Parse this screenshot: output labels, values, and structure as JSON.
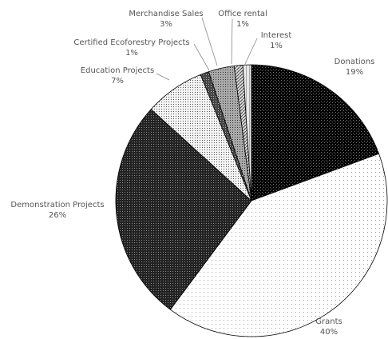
{
  "chart_data": {
    "type": "pie",
    "title": "",
    "slices": [
      {
        "label": "Donations",
        "value": 19,
        "value_label": "19%"
      },
      {
        "label": "Grants",
        "value": 40,
        "value_label": "40%"
      },
      {
        "label": "Demonstration Projects",
        "value": 26,
        "value_label": "26%"
      },
      {
        "label": "Education Projects",
        "value": 7,
        "value_label": "7%"
      },
      {
        "label": "Certified Ecoforestry Projects",
        "value": 1,
        "value_label": "1%"
      },
      {
        "label": "Merchandise Sales",
        "value": 3,
        "value_label": "3%"
      },
      {
        "label": "Office rental",
        "value": 1,
        "value_label": "1%"
      },
      {
        "label": "Interest",
        "value": 1,
        "value_label": "1%"
      }
    ],
    "legend": "none (labels placed beside slices)",
    "start_angle": "12 o'clock, clockwise"
  }
}
